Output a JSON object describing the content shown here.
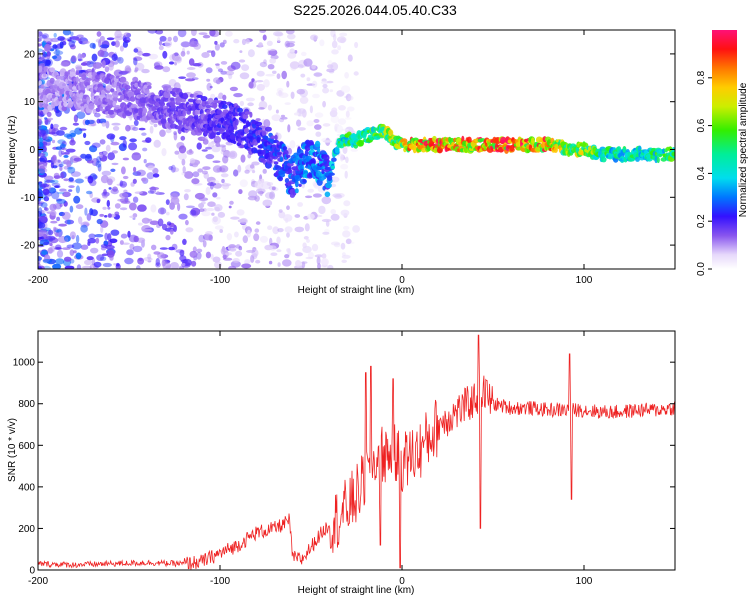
{
  "title": "S225.2026.044.05.40.C33",
  "chart_data": [
    {
      "type": "heatmap",
      "xlabel": "Height of straight line (km)",
      "ylabel": "Frequency (Hz)",
      "xlim": [
        -200,
        150
      ],
      "ylim": [
        -25,
        25
      ],
      "x_ticks": [
        -200,
        -100,
        0,
        100
      ],
      "x_tick_labels": [
        "-200",
        "-100",
        "0",
        "100"
      ],
      "y_ticks": [
        -20,
        -10,
        0,
        10,
        20
      ],
      "y_tick_labels": [
        "-20",
        "-10",
        "0",
        "10",
        "20"
      ],
      "ridge": {
        "x": [
          -200,
          -170,
          -150,
          -130,
          -110,
          -95,
          -85,
          -75,
          -65,
          -60,
          -55,
          -50,
          -45,
          -40,
          -35,
          -30,
          -25,
          -20,
          -15,
          -10,
          -5,
          0,
          10,
          30,
          50,
          70,
          85,
          90,
          100,
          110,
          120,
          130,
          150
        ],
        "frequency": [
          13,
          12,
          11,
          9,
          7,
          6,
          4,
          1,
          -3,
          -6,
          -3,
          -2,
          -3,
          -6,
          1,
          2,
          2,
          3,
          3,
          4,
          2,
          1,
          1,
          1,
          1,
          1,
          1,
          0,
          0,
          -1,
          -1,
          -1,
          -1
        ],
        "amplitude": [
          0.12,
          0.14,
          0.16,
          0.18,
          0.2,
          0.24,
          0.24,
          0.26,
          0.3,
          0.3,
          0.34,
          0.36,
          0.36,
          0.34,
          0.55,
          0.6,
          0.62,
          0.6,
          0.62,
          0.7,
          0.75,
          0.85,
          0.95,
          0.95,
          0.95,
          0.95,
          0.9,
          0.65,
          0.8,
          0.6,
          0.5,
          0.55,
          0.6
        ]
      },
      "colorbar": {
        "label": "Normalized spectral amplitude",
        "range": [
          0,
          1
        ],
        "ticks": [
          0.0,
          0.2,
          0.4,
          0.6,
          0.8
        ],
        "tick_labels": [
          "0.0",
          "0.2",
          "0.4",
          "0.6",
          "0.8"
        ]
      }
    },
    {
      "type": "line",
      "xlabel": "Height of straight line (km)",
      "ylabel": "SNR (10 * v/v)",
      "xlim": [
        -200,
        150
      ],
      "ylim": [
        0,
        1150
      ],
      "x_ticks": [
        -200,
        -100,
        0,
        100
      ],
      "x_tick_labels": [
        "-200",
        "-100",
        "0",
        "100"
      ],
      "y_ticks": [
        0,
        200,
        400,
        600,
        800,
        1000
      ],
      "y_tick_labels": [
        "0",
        "200",
        "400",
        "600",
        "800",
        "1000"
      ],
      "color": "#ee2222",
      "series": [
        {
          "name": "SNR",
          "x": [
            -200,
            -180,
            -160,
            -140,
            -120,
            -110,
            -100,
            -90,
            -80,
            -70,
            -65,
            -62,
            -60,
            -55,
            -50,
            -45,
            -40,
            -35,
            -30,
            -25,
            -20,
            -15,
            -10,
            -5,
            0,
            10,
            20,
            30,
            40,
            45,
            50,
            60,
            70,
            80,
            90,
            100,
            110,
            120,
            130,
            140,
            150
          ],
          "values": [
            30,
            25,
            30,
            35,
            30,
            40,
            80,
            120,
            180,
            200,
            220,
            240,
            60,
            50,
            110,
            170,
            220,
            250,
            300,
            360,
            440,
            520,
            560,
            560,
            520,
            580,
            700,
            760,
            820,
            860,
            800,
            780,
            780,
            770,
            770,
            770,
            760,
            760,
            770,
            770,
            780
          ]
        }
      ],
      "spikes": [
        {
          "x": -20,
          "value": 950
        },
        {
          "x": -17,
          "value": 980
        },
        {
          "x": -12,
          "value": 120
        },
        {
          "x": -5,
          "value": 920
        },
        {
          "x": -1,
          "value": 10
        },
        {
          "x": 42,
          "value": 1130
        },
        {
          "x": 43,
          "value": 200
        },
        {
          "x": 92,
          "value": 1040
        },
        {
          "x": 93,
          "value": 340
        }
      ]
    }
  ]
}
